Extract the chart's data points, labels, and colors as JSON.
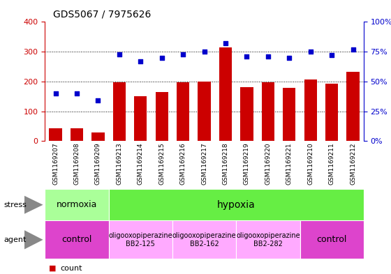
{
  "title": "GDS5067 / 7975626",
  "samples": [
    "GSM1169207",
    "GSM1169208",
    "GSM1169209",
    "GSM1169213",
    "GSM1169214",
    "GSM1169215",
    "GSM1169216",
    "GSM1169217",
    "GSM1169218",
    "GSM1169219",
    "GSM1169220",
    "GSM1169221",
    "GSM1169210",
    "GSM1169211",
    "GSM1169212"
  ],
  "counts": [
    42,
    42,
    30,
    197,
    150,
    165,
    197,
    200,
    315,
    182,
    197,
    178,
    207,
    192,
    232
  ],
  "percentiles": [
    40,
    40,
    34,
    73,
    67,
    70,
    73,
    75,
    82,
    71,
    71,
    70,
    75,
    72,
    77
  ],
  "bar_color": "#cc0000",
  "dot_color": "#0000cc",
  "ylim_left": [
    0,
    400
  ],
  "ylim_right": [
    0,
    100
  ],
  "yticks_left": [
    0,
    100,
    200,
    300,
    400
  ],
  "yticks_right": [
    0,
    25,
    50,
    75,
    100
  ],
  "yticklabels_right": [
    "0%",
    "25%",
    "50%",
    "75%",
    "100%"
  ],
  "stress_labels": [
    {
      "text": "normoxia",
      "start": 0,
      "end": 3,
      "color": "#aaff99"
    },
    {
      "text": "hypoxia",
      "start": 3,
      "end": 15,
      "color": "#66ee44"
    }
  ],
  "agent_labels": [
    {
      "text": "control",
      "start": 0,
      "end": 3,
      "color": "#dd44cc"
    },
    {
      "text": "oligooxopiperazine\nBB2-125",
      "start": 3,
      "end": 6,
      "color": "#ffaaff"
    },
    {
      "text": "oligooxopiperazine\nBB2-162",
      "start": 6,
      "end": 9,
      "color": "#ffaaff"
    },
    {
      "text": "oligooxopiperazine\nBB2-282",
      "start": 9,
      "end": 12,
      "color": "#ffaaff"
    },
    {
      "text": "control",
      "start": 12,
      "end": 15,
      "color": "#dd44cc"
    }
  ],
  "legend_count_color": "#cc0000",
  "legend_pct_color": "#0000cc",
  "axis_color_left": "#cc0000",
  "axis_color_right": "#0000cc",
  "background_color": "#ffffff",
  "tick_bg_color": "#cccccc",
  "plot_bg_color": "#ffffff",
  "grid_color": "#000000",
  "arrow_color": "#888888"
}
